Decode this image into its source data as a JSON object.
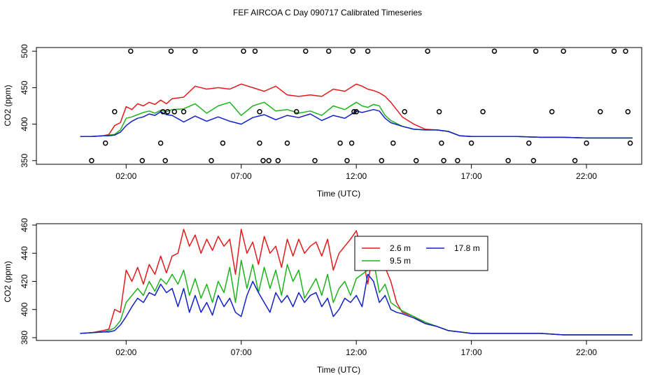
{
  "figure_title": "FEF AIRCOA C  Day 090717  Calibrated Timeseries",
  "colors": {
    "red": "#e31a1c",
    "green": "#1db31d",
    "blue": "#1020c8",
    "axis": "#000000"
  },
  "chart_data": [
    {
      "type": "line",
      "xlabel": "Time (UTC)",
      "ylabel": "CO2 (ppm)",
      "xlim": [
        -1.9,
        24.4
      ],
      "ylim": [
        345,
        505
      ],
      "x_ticks": [
        2,
        7,
        12,
        17,
        22
      ],
      "x_tick_labels": [
        "02:00",
        "07:00",
        "12:00",
        "17:00",
        "22:00"
      ],
      "y_ticks": [
        350,
        400,
        450,
        500
      ],
      "y_tick_labels": [
        "350",
        "400",
        "450",
        "500"
      ],
      "x": [
        0,
        0.5,
        1,
        1.25,
        1.5,
        1.75,
        2,
        2.25,
        2.5,
        2.75,
        3,
        3.25,
        3.5,
        3.75,
        4,
        4.5,
        5,
        5.5,
        6,
        6.5,
        7,
        7.5,
        8,
        8.5,
        9,
        9.5,
        10,
        10.5,
        11,
        11.5,
        12,
        12.25,
        12.5,
        12.75,
        13,
        13.25,
        13.5,
        14,
        14.5,
        15,
        15.5,
        16,
        16.5,
        17,
        18,
        19,
        20,
        21,
        22,
        23,
        24
      ],
      "series": [
        {
          "name": "2.6 m",
          "color_key": "red",
          "values": [
            383,
            383,
            384,
            386,
            398,
            402,
            424,
            420,
            428,
            425,
            430,
            427,
            433,
            428,
            435,
            437,
            452,
            448,
            450,
            448,
            455,
            450,
            445,
            452,
            440,
            438,
            440,
            438,
            448,
            445,
            455,
            452,
            448,
            446,
            443,
            438,
            430,
            410,
            400,
            393,
            392,
            390,
            384,
            383,
            383,
            383,
            382,
            382,
            381,
            381,
            381
          ]
        },
        {
          "name": "9.5 m",
          "color_key": "green",
          "values": [
            383,
            383,
            384,
            385,
            386,
            392,
            408,
            410,
            413,
            416,
            418,
            415,
            419,
            417,
            420,
            421,
            428,
            415,
            425,
            430,
            412,
            425,
            430,
            418,
            420,
            415,
            418,
            412,
            425,
            420,
            430,
            425,
            423,
            427,
            425,
            412,
            405,
            397,
            393,
            392,
            392,
            390,
            384,
            383,
            383,
            383,
            382,
            382,
            381,
            381,
            381
          ]
        },
        {
          "name": "17.8 m",
          "color_key": "blue",
          "values": [
            383,
            383,
            384,
            384,
            385,
            389,
            398,
            404,
            408,
            410,
            414,
            412,
            417,
            413,
            412,
            403,
            411,
            404,
            410,
            404,
            400,
            409,
            413,
            406,
            412,
            409,
            414,
            405,
            412,
            408,
            418,
            416,
            418,
            420,
            418,
            408,
            402,
            397,
            393,
            392,
            392,
            390,
            384,
            383,
            383,
            383,
            382,
            382,
            381,
            381,
            381
          ]
        }
      ],
      "flags_x": [
        1.1,
        0.5,
        1.5,
        2.2,
        2.7,
        3.5,
        3.7,
        3.95,
        3.8,
        3.6,
        4.1,
        4.5,
        5,
        5.7,
        6.2,
        7.1,
        7.6,
        7.8,
        7.95,
        7.8,
        8.2,
        8.6,
        9,
        9.4,
        9.8,
        10.2,
        10.8,
        11.3,
        11.6,
        11.8,
        11.85,
        11.9,
        12,
        12.5,
        13.1,
        13.6,
        14.1,
        14.6,
        15.1,
        15.6,
        15.7,
        15.8,
        16.4,
        17,
        17.5,
        18,
        18.6,
        19.5,
        19.7,
        19.8,
        20.5,
        21,
        21.5,
        22,
        22.6,
        23.2,
        23.7,
        23.8,
        23.9
      ],
      "flags_y": [
        374,
        350,
        417,
        500,
        350,
        374,
        350,
        500,
        417,
        417,
        417,
        417,
        500,
        350,
        374,
        500,
        500,
        417,
        350,
        374,
        350,
        350,
        374,
        417,
        500,
        350,
        500,
        374,
        350,
        374,
        500,
        417,
        417,
        500,
        350,
        374,
        417,
        350,
        500,
        417,
        374,
        350,
        350,
        374,
        417,
        500,
        350,
        374,
        350,
        500,
        417,
        500,
        350,
        374,
        417,
        500,
        500,
        417,
        374
      ]
    },
    {
      "type": "line",
      "xlabel": "Time (UTC)",
      "ylabel": "CO2 (ppm)",
      "xlim": [
        -1.9,
        24.4
      ],
      "ylim": [
        378,
        461
      ],
      "x_ticks": [
        2,
        7,
        12,
        17,
        22
      ],
      "x_tick_labels": [
        "02:00",
        "07:00",
        "12:00",
        "17:00",
        "22:00"
      ],
      "y_ticks": [
        380,
        400,
        420,
        440,
        460
      ],
      "y_tick_labels": [
        "380",
        "400",
        "420",
        "440",
        "460"
      ],
      "legend": {
        "position": "upper-middle-right",
        "entries": [
          {
            "label": "2.6 m",
            "color_key": "red"
          },
          {
            "label": "9.5 m",
            "color_key": "green"
          },
          {
            "label": "17.8 m",
            "color_key": "blue"
          }
        ]
      },
      "x": [
        0,
        0.5,
        1,
        1.25,
        1.5,
        1.75,
        2,
        2.25,
        2.5,
        2.75,
        3,
        3.25,
        3.5,
        3.75,
        4,
        4.25,
        4.5,
        4.75,
        5,
        5.25,
        5.5,
        5.75,
        6,
        6.25,
        6.5,
        6.75,
        7,
        7.25,
        7.5,
        7.75,
        8,
        8.25,
        8.5,
        8.75,
        9,
        9.25,
        9.5,
        9.75,
        10,
        10.25,
        10.5,
        10.75,
        11,
        11.25,
        11.5,
        11.75,
        12,
        12.25,
        12.5,
        12.75,
        13,
        13.25,
        13.5,
        13.75,
        14,
        14.5,
        15,
        15.5,
        16,
        16.5,
        17,
        18,
        19,
        20,
        21,
        22,
        23,
        24
      ],
      "series": [
        {
          "name": "2.6 m",
          "color_key": "red",
          "values": [
            383,
            383.5,
            385,
            386,
            400,
            398,
            428,
            420,
            430,
            418,
            432,
            425,
            438,
            426,
            438,
            440,
            457,
            445,
            453,
            440,
            450,
            442,
            452,
            445,
            450,
            425,
            457,
            440,
            448,
            432,
            452,
            440,
            445,
            430,
            450,
            438,
            450,
            440,
            445,
            448,
            438,
            450,
            428,
            440,
            445,
            450,
            456,
            440,
            418,
            445,
            440,
            430,
            420,
            405,
            398,
            395,
            390,
            388,
            385,
            384,
            383,
            383,
            383,
            383,
            382,
            382,
            382,
            382
          ]
        },
        {
          "name": "9.5 m",
          "color_key": "green",
          "values": [
            383,
            383.5,
            384,
            385,
            387,
            392,
            405,
            410,
            415,
            410,
            420,
            413,
            422,
            418,
            425,
            418,
            428,
            410,
            422,
            408,
            418,
            405,
            420,
            412,
            430,
            405,
            435,
            415,
            432,
            412,
            430,
            415,
            428,
            410,
            432,
            420,
            428,
            408,
            415,
            422,
            410,
            425,
            405,
            415,
            420,
            410,
            422,
            425,
            428,
            435,
            412,
            418,
            405,
            402,
            399,
            395,
            391,
            388,
            385,
            384,
            383,
            383,
            383,
            383,
            382,
            382,
            382,
            382
          ]
        },
        {
          "name": "17.8 m",
          "color_key": "blue",
          "values": [
            383,
            383.5,
            384,
            384,
            385,
            389,
            395,
            402,
            408,
            405,
            412,
            410,
            418,
            412,
            415,
            402,
            415,
            398,
            410,
            398,
            405,
            396,
            410,
            402,
            408,
            398,
            395,
            410,
            420,
            412,
            405,
            398,
            412,
            405,
            410,
            402,
            412,
            405,
            410,
            412,
            402,
            408,
            395,
            400,
            408,
            405,
            410,
            402,
            425,
            420,
            405,
            410,
            400,
            398,
            397,
            394,
            390,
            388,
            385,
            384,
            383,
            383,
            383,
            383,
            382,
            382,
            382,
            382
          ]
        }
      ]
    }
  ]
}
